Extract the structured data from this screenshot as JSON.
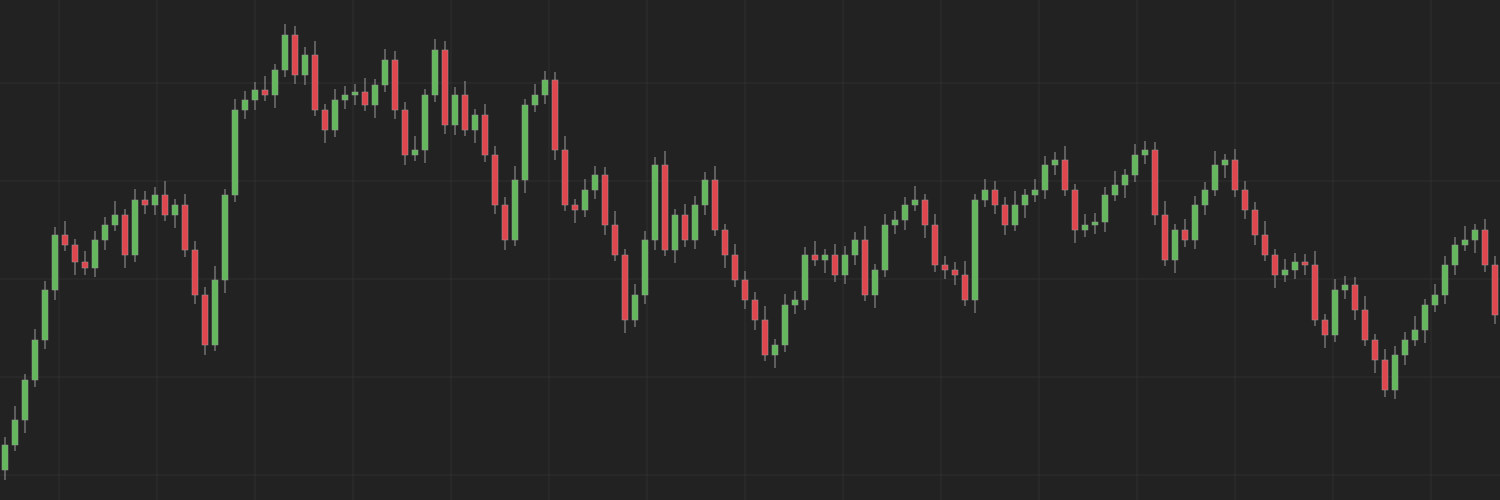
{
  "chart_data": {
    "type": "candlestick",
    "ylim": [
      0,
      500
    ],
    "yticks": [
      25,
      123,
      221,
      319,
      417
    ],
    "xlim": [
      -0.5,
      149.5
    ],
    "xticks": [
      5.4,
      15.2,
      25,
      34.8,
      44.6,
      54.4,
      64.2,
      74,
      83.8,
      93.6,
      103.4,
      113.2,
      123,
      132.8,
      142.6
    ],
    "grid": true,
    "up_color": "#62b85a",
    "down_color": "#e0464e",
    "wick_color": "#9a9a9a",
    "background": "#222222",
    "grid_color": "#2f2f2f",
    "open": [
      30,
      55,
      80,
      120,
      160,
      210,
      265,
      255,
      238,
      232,
      260,
      275,
      285,
      245,
      300,
      295,
      305,
      285,
      295,
      250,
      205,
      155,
      220,
      305,
      390,
      400,
      410,
      405,
      430,
      465,
      425,
      445,
      390,
      370,
      400,
      405,
      408,
      395,
      415,
      440,
      390,
      345,
      350,
      405,
      450,
      375,
      405,
      370,
      385,
      345,
      295,
      260,
      320,
      395,
      405,
      420,
      350,
      295,
      290,
      310,
      325,
      275,
      245,
      180,
      205,
      260,
      335,
      250,
      285,
      260,
      295,
      320,
      270,
      245,
      220,
      200,
      180,
      145,
      155,
      195,
      200,
      245,
      240,
      245,
      225,
      245,
      260,
      205,
      230,
      275,
      280,
      295,
      300,
      275,
      235,
      230,
      225,
      200,
      300,
      310,
      295,
      275,
      295,
      305,
      310,
      335,
      340,
      310,
      270,
      275,
      278,
      305,
      315,
      325,
      345,
      350,
      285,
      240,
      270,
      260,
      295,
      310,
      335,
      340,
      310,
      290,
      265,
      245,
      225,
      230,
      238,
      235,
      180,
      165,
      210,
      215,
      190,
      160,
      140,
      110,
      145,
      160,
      170,
      195,
      205,
      235,
      255,
      260,
      270,
      235
    ],
    "high": [
      63,
      94,
      126,
      171,
      219,
      273,
      279,
      261,
      249,
      269,
      283,
      299,
      291,
      311,
      309,
      313,
      319,
      301,
      306,
      259,
      213,
      234,
      311,
      401,
      409,
      418,
      424,
      436,
      476,
      474,
      453,
      459,
      396,
      411,
      414,
      416,
      422,
      421,
      451,
      449,
      398,
      364,
      411,
      461,
      459,
      413,
      419,
      391,
      396,
      354,
      303,
      334,
      401,
      416,
      429,
      428,
      364,
      301,
      321,
      334,
      333,
      289,
      251,
      216,
      269,
      343,
      349,
      291,
      296,
      304,
      328,
      334,
      276,
      256,
      229,
      208,
      194,
      161,
      206,
      209,
      253,
      259,
      251,
      256,
      254,
      268,
      274,
      236,
      286,
      289,
      303,
      314,
      306,
      286,
      244,
      238,
      239,
      306,
      321,
      319,
      303,
      309,
      311,
      321,
      344,
      348,
      354,
      316,
      286,
      287,
      313,
      329,
      331,
      356,
      359,
      358,
      299,
      276,
      281,
      304,
      318,
      349,
      346,
      351,
      319,
      298,
      279,
      251,
      241,
      247,
      246,
      249,
      186,
      221,
      224,
      223,
      204,
      166,
      151,
      154,
      168,
      184,
      201,
      216,
      244,
      263,
      274,
      276,
      281,
      244
    ],
    "low": [
      20,
      49,
      67,
      113,
      151,
      200,
      249,
      225,
      225,
      223,
      250,
      269,
      232,
      238,
      286,
      285,
      279,
      272,
      243,
      196,
      145,
      149,
      207,
      298,
      381,
      390,
      399,
      392,
      423,
      416,
      415,
      384,
      357,
      363,
      391,
      395,
      389,
      382,
      408,
      381,
      335,
      339,
      337,
      398,
      366,
      365,
      364,
      357,
      338,
      286,
      250,
      254,
      307,
      388,
      396,
      340,
      289,
      277,
      283,
      301,
      265,
      239,
      167,
      173,
      196,
      250,
      244,
      237,
      253,
      251,
      285,
      264,
      232,
      213,
      191,
      170,
      139,
      132,
      148,
      186,
      190,
      234,
      227,
      218,
      216,
      235,
      199,
      192,
      223,
      266,
      270,
      289,
      262,
      228,
      221,
      215,
      194,
      187,
      293,
      286,
      265,
      269,
      282,
      298,
      301,
      325,
      304,
      257,
      263,
      266,
      268,
      299,
      302,
      318,
      336,
      275,
      234,
      227,
      253,
      251,
      285,
      304,
      322,
      303,
      281,
      255,
      239,
      212,
      218,
      221,
      225,
      174,
      152,
      158,
      201,
      180,
      154,
      127,
      103,
      101,
      135,
      154,
      157,
      188,
      196,
      225,
      249,
      247,
      228,
      176
    ],
    "close": [
      55,
      80,
      120,
      160,
      210,
      265,
      255,
      238,
      232,
      260,
      275,
      285,
      245,
      300,
      295,
      305,
      285,
      295,
      250,
      205,
      155,
      220,
      305,
      390,
      400,
      410,
      405,
      430,
      465,
      425,
      445,
      390,
      370,
      400,
      405,
      408,
      395,
      415,
      440,
      390,
      345,
      350,
      405,
      450,
      375,
      405,
      370,
      385,
      345,
      295,
      260,
      320,
      395,
      405,
      420,
      350,
      295,
      290,
      310,
      325,
      275,
      245,
      180,
      205,
      260,
      335,
      250,
      285,
      260,
      295,
      320,
      270,
      245,
      220,
      200,
      180,
      145,
      155,
      195,
      200,
      245,
      240,
      245,
      225,
      245,
      260,
      205,
      230,
      275,
      280,
      295,
      300,
      275,
      235,
      230,
      225,
      200,
      300,
      310,
      295,
      275,
      295,
      305,
      310,
      335,
      340,
      310,
      270,
      275,
      278,
      305,
      315,
      325,
      345,
      350,
      285,
      240,
      270,
      260,
      295,
      310,
      335,
      340,
      310,
      290,
      265,
      245,
      225,
      230,
      238,
      235,
      180,
      165,
      210,
      215,
      190,
      160,
      140,
      110,
      145,
      160,
      170,
      195,
      205,
      235,
      255,
      260,
      270,
      235,
      185
    ]
  }
}
